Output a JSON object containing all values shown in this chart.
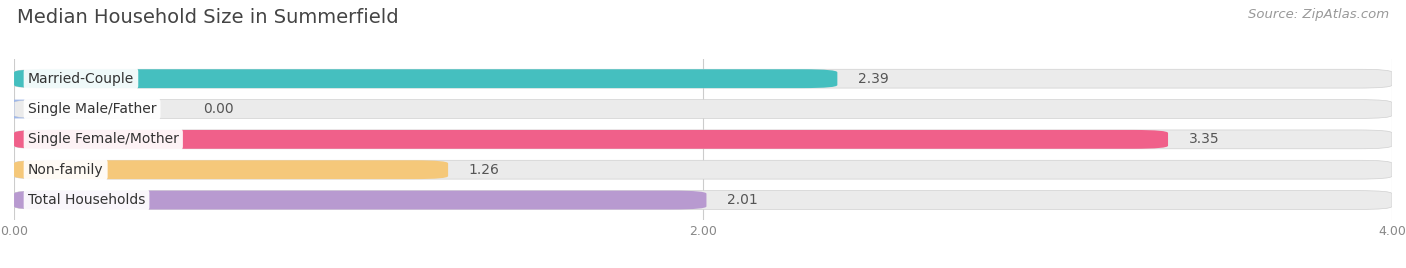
{
  "title": "Median Household Size in Summerfield",
  "source": "Source: ZipAtlas.com",
  "categories": [
    "Married-Couple",
    "Single Male/Father",
    "Single Female/Mother",
    "Non-family",
    "Total Households"
  ],
  "values": [
    2.39,
    0.0,
    3.35,
    1.26,
    2.01
  ],
  "bar_colors": [
    "#45bfbf",
    "#a0b8e8",
    "#f0608a",
    "#f5c87a",
    "#b89ad0"
  ],
  "background_color": "#ffffff",
  "bar_bg_color": "#ebebeb",
  "xlim": [
    0,
    4.0
  ],
  "xticks": [
    0.0,
    2.0,
    4.0
  ],
  "xtick_labels": [
    "0.00",
    "2.00",
    "4.00"
  ],
  "title_fontsize": 14,
  "source_fontsize": 9.5,
  "label_fontsize": 10,
  "value_fontsize": 10,
  "bar_height": 0.62,
  "bar_rounding": 0.1
}
